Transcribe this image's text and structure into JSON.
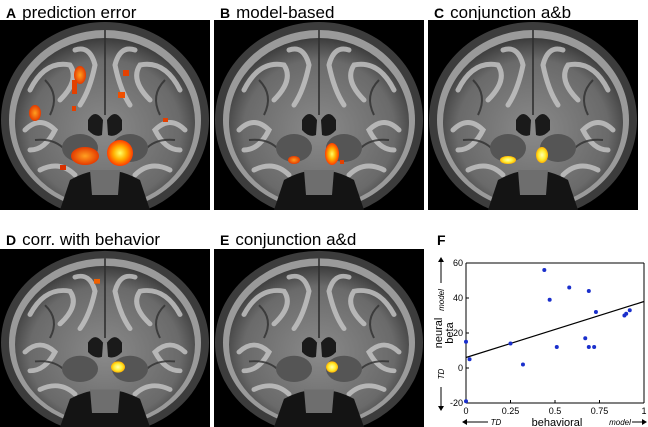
{
  "panels": [
    {
      "letter": "A",
      "title": "prediction error"
    },
    {
      "letter": "B",
      "title": "model-based"
    },
    {
      "letter": "C",
      "title": "conjunction a&b"
    },
    {
      "letter": "D",
      "title": "corr. with behavior"
    },
    {
      "letter": "E",
      "title": "conjunction a&d"
    }
  ],
  "scatter_letter": "F",
  "chart_data": {
    "type": "scatter",
    "title": "",
    "xlabel": "behavioral",
    "ylabel": "neural beta",
    "x_end_labels": {
      "low": "TD",
      "high": "model"
    },
    "y_end_labels": {
      "low": "TD",
      "high": "model"
    },
    "xlim": [
      0,
      1
    ],
    "ylim": [
      -20,
      60
    ],
    "xticks": [
      "0",
      "0.25",
      "0.5",
      "0.75",
      "1"
    ],
    "yticks": [
      "-20",
      "0",
      "20",
      "40",
      "60"
    ],
    "points": [
      {
        "x": 0.0,
        "y": -19
      },
      {
        "x": 0.0,
        "y": 15
      },
      {
        "x": 0.02,
        "y": 5
      },
      {
        "x": 0.25,
        "y": 14
      },
      {
        "x": 0.32,
        "y": 2
      },
      {
        "x": 0.44,
        "y": 56
      },
      {
        "x": 0.47,
        "y": 39
      },
      {
        "x": 0.51,
        "y": 12
      },
      {
        "x": 0.58,
        "y": 46
      },
      {
        "x": 0.67,
        "y": 17
      },
      {
        "x": 0.69,
        "y": 12
      },
      {
        "x": 0.69,
        "y": 44
      },
      {
        "x": 0.72,
        "y": 12
      },
      {
        "x": 0.73,
        "y": 32
      },
      {
        "x": 0.89,
        "y": 30
      },
      {
        "x": 0.9,
        "y": 31
      },
      {
        "x": 0.92,
        "y": 33
      }
    ],
    "fit_line": {
      "x": [
        0,
        1
      ],
      "y": [
        6,
        38
      ]
    },
    "point_color": "#1a2fcc"
  }
}
